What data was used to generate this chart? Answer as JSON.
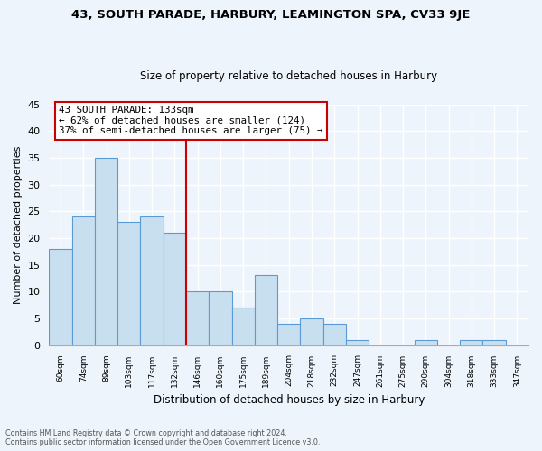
{
  "title": "43, SOUTH PARADE, HARBURY, LEAMINGTON SPA, CV33 9JE",
  "subtitle": "Size of property relative to detached houses in Harbury",
  "xlabel": "Distribution of detached houses by size in Harbury",
  "ylabel": "Number of detached properties",
  "bar_labels": [
    "60sqm",
    "74sqm",
    "89sqm",
    "103sqm",
    "117sqm",
    "132sqm",
    "146sqm",
    "160sqm",
    "175sqm",
    "189sqm",
    "204sqm",
    "218sqm",
    "232sqm",
    "247sqm",
    "261sqm",
    "275sqm",
    "290sqm",
    "304sqm",
    "318sqm",
    "333sqm",
    "347sqm"
  ],
  "bar_values": [
    18,
    24,
    35,
    23,
    24,
    21,
    10,
    10,
    7,
    13,
    4,
    5,
    4,
    1,
    0,
    0,
    1,
    0,
    1,
    1,
    0
  ],
  "bar_color": "#c8dff0",
  "bar_edge_color": "#5b9bd5",
  "red_line_color": "#cc0000",
  "red_line_index": 5,
  "annotation_title": "43 SOUTH PARADE: 133sqm",
  "annotation_line1": "← 62% of detached houses are smaller (124)",
  "annotation_line2": "37% of semi-detached houses are larger (75) →",
  "annotation_box_edge": "#cc0000",
  "ylim": [
    0,
    45
  ],
  "yticks": [
    0,
    5,
    10,
    15,
    20,
    25,
    30,
    35,
    40,
    45
  ],
  "footer1": "Contains HM Land Registry data © Crown copyright and database right 2024.",
  "footer2": "Contains public sector information licensed under the Open Government Licence v3.0.",
  "bg_color": "#eef4fb",
  "grid_color": "#ffffff",
  "title_fontsize": 9.5,
  "subtitle_fontsize": 8.5
}
